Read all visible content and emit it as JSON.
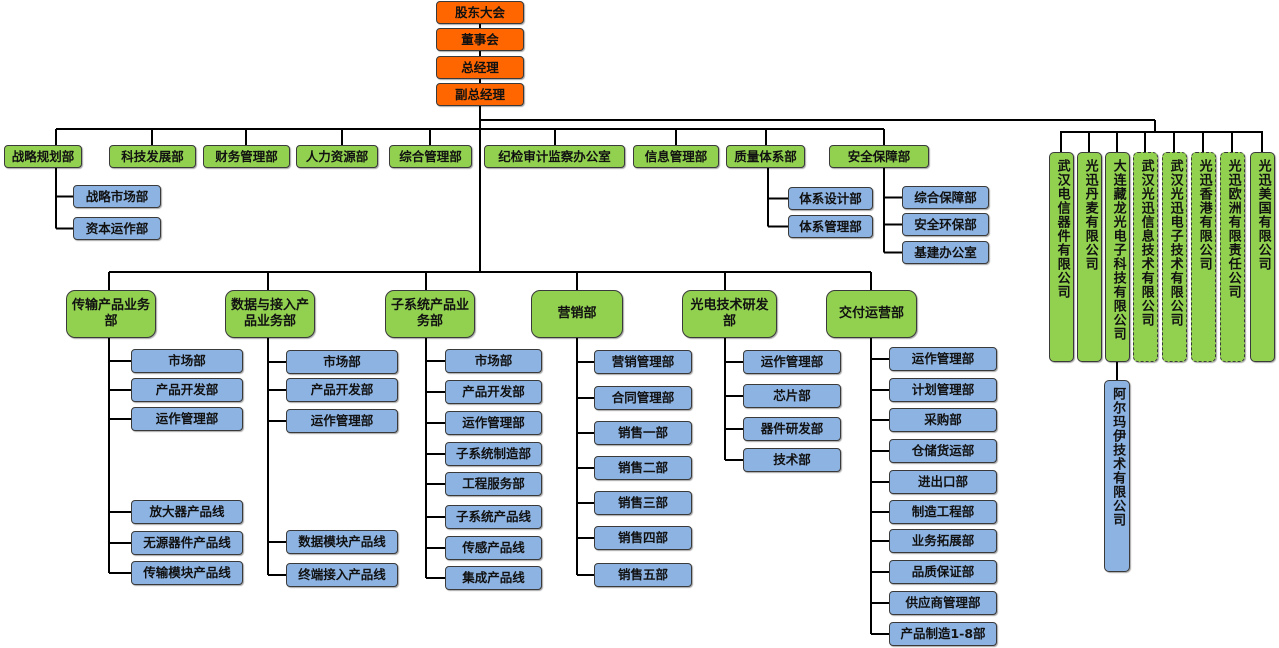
{
  "colors": {
    "leadership": "#ff6600",
    "department": "#92d050",
    "sub_department": "#8db3e2",
    "connector": "#000000"
  },
  "leadership": [
    "股东大会",
    "董事会",
    "总经理",
    "副总经理"
  ],
  "functional_departments": [
    {
      "name": "战略规划部",
      "children": [
        "战略市场部",
        "资本运作部"
      ]
    },
    {
      "name": "科技发展部",
      "children": []
    },
    {
      "name": "财务管理部",
      "children": []
    },
    {
      "name": "人力资源部",
      "children": []
    },
    {
      "name": "综合管理部",
      "children": []
    },
    {
      "name": "纪检审计监察办公室",
      "children": []
    },
    {
      "name": "信息管理部",
      "children": []
    },
    {
      "name": "质量体系部",
      "children": [
        "体系设计部",
        "体系管理部"
      ]
    },
    {
      "name": "安全保障部",
      "children": [
        "综合保障部",
        "安全环保部",
        "基建办公室"
      ]
    }
  ],
  "business_units": [
    {
      "name": "传输产品业务部",
      "children": [
        "市场部",
        "产品开发部",
        "运作管理部",
        "放大器产品线",
        "无源器件产品线",
        "传输模块产品线"
      ]
    },
    {
      "name": "数据与接入产品业务部",
      "children": [
        "市场部",
        "产品开发部",
        "运作管理部",
        "数据模块产品线",
        "终端接入产品线"
      ]
    },
    {
      "name": "子系统产品业务部",
      "children": [
        "市场部",
        "产品开发部",
        "运作管理部",
        "子系统制造部",
        "工程服务部",
        "子系统产品线",
        "传感产品线",
        "集成产品线"
      ]
    },
    {
      "name": "营销部",
      "children": [
        "营销管理部",
        "合同管理部",
        "销售一部",
        "销售二部",
        "销售三部",
        "销售四部",
        "销售五部"
      ]
    },
    {
      "name": "光电技术研发部",
      "children": [
        "运作管理部",
        "芯片部",
        "器件研发部",
        "技术部"
      ]
    },
    {
      "name": "交付运营部",
      "children": [
        "运作管理部",
        "计划管理部",
        "采购部",
        "仓储货运部",
        "进出口部",
        "制造工程部",
        "业务拓展部",
        "品质保证部",
        "供应商管理部",
        "产品制造1-8部"
      ]
    }
  ],
  "subsidiaries": [
    {
      "name": "武汉电信器件有限公司",
      "border": "solid",
      "children": []
    },
    {
      "name": "光迅丹麦有限公司",
      "border": "solid",
      "children": []
    },
    {
      "name": "大连藏龙光电子科技有限公司",
      "border": "solid",
      "children": [
        "阿尔玛伊技术有限公司"
      ]
    },
    {
      "name": "武汉光迅信息技术有限公司",
      "border": "dashed",
      "children": []
    },
    {
      "name": "武汉光迅电子技术有限公司",
      "border": "dashed",
      "children": []
    },
    {
      "name": "光迅香港有限公司",
      "border": "dashed",
      "children": []
    },
    {
      "name": "光迅欧洲有限责任公司",
      "border": "dashed",
      "children": []
    },
    {
      "name": "光迅美国有限公司",
      "border": "solid",
      "children": []
    }
  ]
}
